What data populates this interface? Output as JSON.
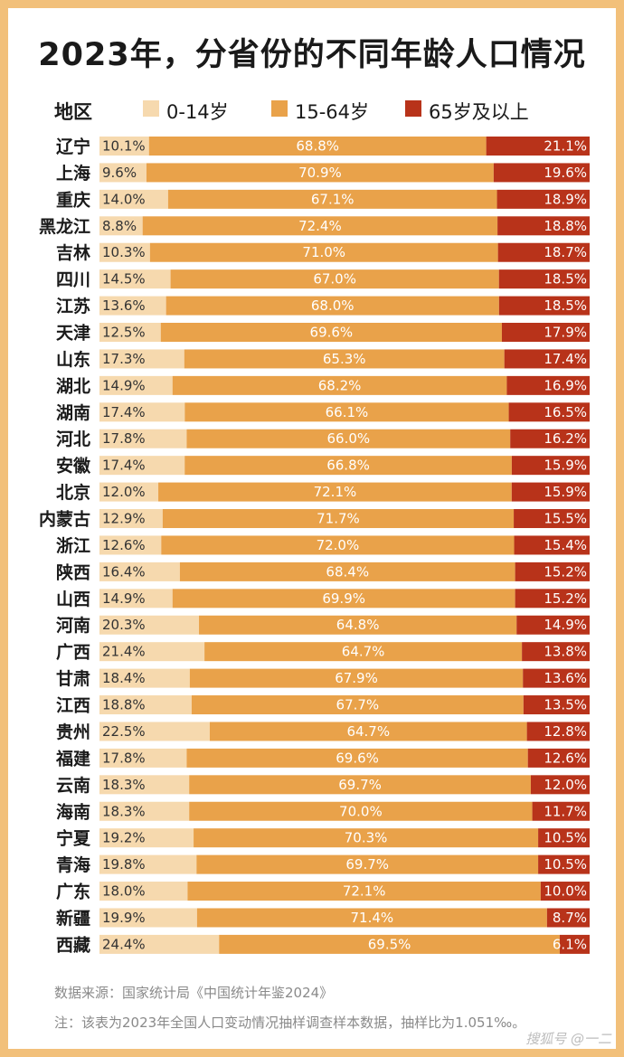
{
  "colors": {
    "age_0_14": "#F6D9AE",
    "age_15_64": "#E9A24A",
    "age_65_plus": "#B8331A",
    "frame": "#F2C07A"
  },
  "legend": {
    "header": "地区",
    "items": [
      {
        "label": "0-14岁",
        "color": "#F6D9AE"
      },
      {
        "label": "15-64岁",
        "color": "#E9A24A"
      },
      {
        "label": "65岁及以上",
        "color": "#B8331A"
      }
    ]
  },
  "footnotes": {
    "source": "数据来源：国家统计局《中国统计年鉴2024》",
    "note": "注：该表为2023年全国人口变动情况抽样调查样本数据，抽样比为1.051‰。"
  },
  "watermark": "搜狐号 @一二",
  "chart_data": {
    "type": "bar",
    "orientation": "horizontal",
    "stacked": "percent",
    "title": "2023年，分省份的不同年龄人口情况",
    "categories": [
      "辽宁",
      "上海",
      "重庆",
      "黑龙江",
      "吉林",
      "四川",
      "江苏",
      "天津",
      "山东",
      "湖北",
      "湖南",
      "河北",
      "安徽",
      "北京",
      "内蒙古",
      "浙江",
      "陕西",
      "山西",
      "河南",
      "广西",
      "甘肃",
      "江西",
      "贵州",
      "福建",
      "云南",
      "海南",
      "宁夏",
      "青海",
      "广东",
      "新疆",
      "西藏"
    ],
    "series": [
      {
        "name": "0-14岁",
        "values": [
          10.1,
          9.6,
          14.0,
          8.8,
          10.3,
          14.5,
          13.6,
          12.5,
          17.3,
          14.9,
          17.4,
          17.8,
          17.4,
          12.0,
          12.9,
          12.6,
          16.4,
          14.9,
          20.3,
          21.4,
          18.4,
          18.8,
          22.5,
          17.8,
          18.3,
          18.3,
          19.2,
          19.8,
          18.0,
          19.9,
          24.4
        ]
      },
      {
        "name": "15-64岁",
        "values": [
          68.8,
          70.9,
          67.1,
          72.4,
          71.0,
          67.0,
          68.0,
          69.6,
          65.3,
          68.2,
          66.1,
          66.0,
          66.8,
          72.1,
          71.7,
          72.0,
          68.4,
          69.9,
          64.8,
          64.7,
          67.9,
          67.7,
          64.7,
          69.6,
          69.7,
          70.0,
          70.3,
          69.7,
          72.1,
          71.4,
          69.5
        ]
      },
      {
        "name": "65岁及以上",
        "values": [
          21.1,
          19.6,
          18.9,
          18.8,
          18.7,
          18.5,
          18.5,
          17.9,
          17.4,
          16.9,
          16.5,
          16.2,
          15.9,
          15.9,
          15.5,
          15.4,
          15.2,
          15.2,
          14.9,
          13.8,
          13.6,
          13.5,
          12.8,
          12.6,
          12.0,
          11.7,
          10.5,
          10.5,
          10.0,
          8.7,
          6.1
        ]
      }
    ],
    "value_labels": {
      "0-14岁": [
        "10.1%",
        "9.6%",
        "14.0%",
        "8.8%",
        "10.3%",
        "14.5%",
        "13.6%",
        "12.5%",
        "17.3%",
        "14.9%",
        "17.4%",
        "17.8%",
        "17.4%",
        "12.0%",
        "12.9%",
        "12.6%",
        "16.4%",
        "14.9%",
        "20.3%",
        "21.4%",
        "18.4%",
        "18.8%",
        "22.5%",
        "17.8%",
        "18.3%",
        "18.3%",
        "19.2%",
        "19.8%",
        "18.0%",
        "19.9%",
        "24.4%"
      ],
      "15-64岁": [
        "68.8%",
        "70.9%",
        "67.1%",
        "72.4%",
        "71.0%",
        "67.0%",
        "68.0%",
        "69.6%",
        "65.3%",
        "68.2%",
        "66.1%",
        "66.0%",
        "66.8%",
        "72.1%",
        "71.7%",
        "72.0%",
        "68.4%",
        "69.9%",
        "64.8%",
        "64.7%",
        "67.9%",
        "67.7%",
        "64.7%",
        "69.6%",
        "69.7%",
        "70.0%",
        "70.3%",
        "69.7%",
        "72.1%",
        "71.4%",
        "69.5%"
      ],
      "65岁及以上": [
        "21.1%",
        "19.6%",
        "18.9%",
        "18.8%",
        "18.7%",
        "18.5%",
        "18.5%",
        "17.9%",
        "17.4%",
        "16.9%",
        "16.5%",
        "16.2%",
        "15.9%",
        "15.9%",
        "15.5%",
        "15.4%",
        "15.2%",
        "15.2%",
        "14.9%",
        "13.8%",
        "13.6%",
        "13.5%",
        "12.8%",
        "12.6%",
        "12.0%",
        "11.7%",
        "10.5%",
        "10.5%",
        "10.0%",
        "8.7%",
        "6.1%"
      ]
    },
    "xlim": [
      0,
      100
    ],
    "grid": false,
    "legend_position": "top"
  }
}
